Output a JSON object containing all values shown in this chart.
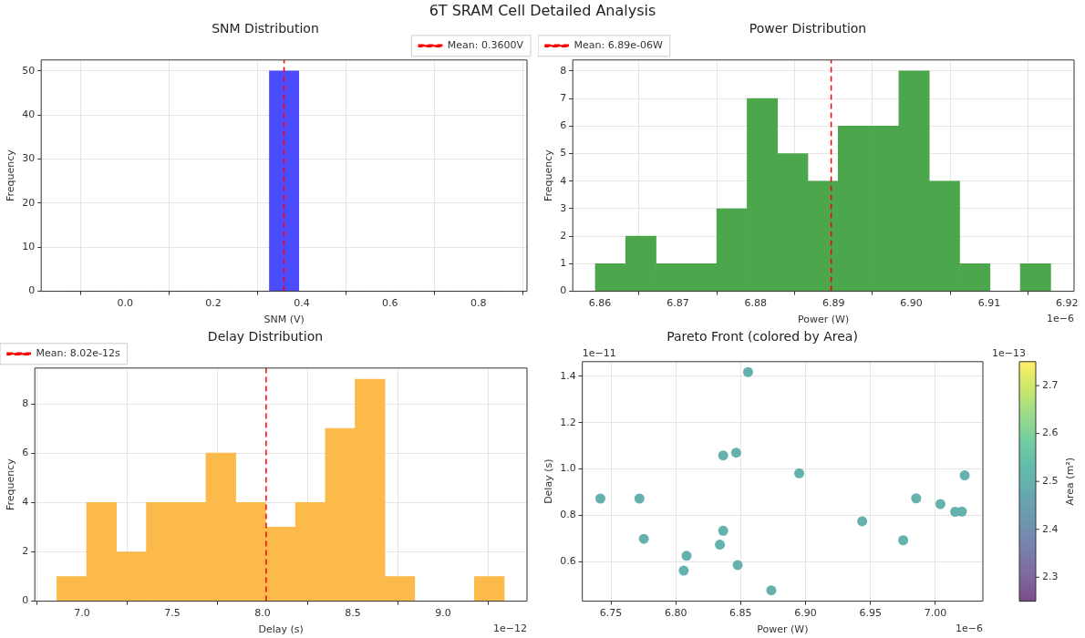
{
  "chart_data": [
    {
      "type": "other",
      "title": "6T SRAM Cell Detailed Analysis"
    },
    {
      "type": "histogram",
      "title": "SNM Distribution",
      "xlabel": "SNM (V)",
      "ylabel": "Frequency",
      "color": "#4c4cff",
      "bins": [
        -0.14,
        -0.0733,
        -0.0067,
        0.06,
        0.1267,
        0.1933,
        0.26,
        0.3267,
        0.3933,
        0.46,
        0.5267,
        0.5933,
        0.66,
        0.7267,
        0.7933,
        0.86
      ],
      "values": [
        0,
        0,
        0,
        0,
        0,
        0,
        0,
        50,
        0,
        0,
        0,
        0,
        0,
        0,
        0
      ],
      "xlim": [
        -0.19,
        0.91
      ],
      "xticks": [
        {
          "value": 0,
          "label": "0.0"
        },
        0.2,
        0.4,
        0.6,
        0.8
      ],
      "ylim": [
        0,
        52.5
      ],
      "yticks": [
        0,
        10,
        20,
        30,
        40,
        50
      ],
      "ref_lines": [
        {
          "axis": "x",
          "value": 0.36,
          "label": "Mean: 0.3600V",
          "color": "#ff0000",
          "line_style": "dashed"
        }
      ],
      "grid": true,
      "legend": "top right"
    },
    {
      "type": "histogram",
      "title": "Power Distribution",
      "xlabel": "Power (W)",
      "ylabel": "Frequency",
      "color": "#4ca64c",
      "bins": [
        6.8594,
        6.8633,
        6.8672,
        6.8711,
        6.875,
        6.8789,
        6.8828,
        6.8867,
        6.8906,
        6.8945,
        6.8984,
        6.9023,
        6.9062,
        6.9101,
        6.914,
        6.9179
      ],
      "values": [
        1,
        2,
        1,
        1,
        3,
        7,
        5,
        4,
        6,
        6,
        8,
        4,
        1,
        0,
        1
      ],
      "xlim": [
        6.8565,
        6.9209
      ],
      "xticks": [
        6.86,
        6.87,
        6.88,
        6.89,
        {
          "value": 6.9,
          "label": "6.90"
        },
        6.91,
        6.92
      ],
      "ylim": [
        0,
        8.4
      ],
      "yticks": [
        0,
        1,
        2,
        3,
        4,
        5,
        6,
        7,
        8
      ],
      "ref_lines": [
        {
          "axis": "x",
          "value": 6.8897,
          "label": "Mean: 6.89e-06W",
          "color": "#ff0000",
          "line_style": "dashed"
        }
      ],
      "annotations": [
        "1e−6"
      ],
      "grid": true,
      "legend": "top left"
    },
    {
      "type": "histogram",
      "title": "Delay Distribution",
      "xlabel": "Delay (s)",
      "ylabel": "Frequency",
      "color": "#fbba4a",
      "bins": [
        6.861,
        7.026,
        7.191,
        7.357,
        7.522,
        7.687,
        7.852,
        8.017,
        8.183,
        8.348,
        8.513,
        8.678,
        8.843,
        9.009,
        9.174,
        9.339
      ],
      "values": [
        1,
        4,
        2,
        4,
        4,
        6,
        4,
        3,
        4,
        7,
        9,
        1,
        0,
        0,
        1
      ],
      "xlim": [
        6.739,
        9.465
      ],
      "xticks": [
        {
          "value": 7,
          "label": "7.0"
        },
        7.5,
        {
          "value": 8,
          "label": "8.0"
        },
        8.5,
        {
          "value": 9,
          "label": "9.0"
        }
      ],
      "ylim": [
        0,
        9.45
      ],
      "yticks": [
        0,
        2,
        4,
        6,
        8
      ],
      "ref_lines": [
        {
          "axis": "x",
          "value": 8.02,
          "label": "Mean: 8.02e-12s",
          "color": "#ff0000",
          "line_style": "dashed"
        }
      ],
      "annotations": [
        "1e−12"
      ],
      "grid": true,
      "legend": "top left"
    },
    {
      "type": "scatter",
      "title": "Pareto Front (colored by Area)",
      "xlabel": "Power (W)",
      "ylabel": "Delay (s)",
      "clabel": "Area (m²)",
      "x": [
        6.7419,
        6.772,
        6.7754,
        6.8061,
        6.8083,
        6.834,
        6.8365,
        6.8365,
        6.8465,
        6.8477,
        6.8557,
        6.8736,
        6.8951,
        6.9436,
        6.9752,
        6.9852,
        7.0039,
        7.0153,
        7.0204,
        7.0226
      ],
      "values": [
        0.872,
        0.872,
        0.698,
        0.561,
        0.625,
        0.673,
        1.058,
        0.733,
        1.07,
        0.585,
        1.418,
        0.476,
        0.981,
        0.774,
        0.692,
        0.873,
        0.848,
        0.815,
        0.816,
        0.972
      ],
      "cvalues": [
        2.5,
        2.5,
        2.5,
        2.5,
        2.5,
        2.5,
        2.5,
        2.5,
        2.5,
        2.5,
        2.5,
        2.5,
        2.5,
        2.5,
        2.5,
        2.5,
        2.5,
        2.5,
        2.5,
        2.5
      ],
      "clim": [
        2.25,
        2.75
      ],
      "cticks": [
        2.3,
        2.4,
        2.5,
        2.6,
        2.7
      ],
      "xlim": [
        6.728,
        7.0366
      ],
      "xticks": [
        6.75,
        {
          "value": 6.8,
          "label": "6.80"
        },
        6.85,
        {
          "value": 6.9,
          "label": "6.90"
        },
        6.95,
        {
          "value": 7,
          "label": "7.00"
        }
      ],
      "ylim": [
        0.429,
        1.463
      ],
      "yticks": [
        0.6,
        0.8,
        {
          "value": 1,
          "label": "1.0"
        },
        1.2,
        1.4
      ],
      "annotations": [
        "1e−6",
        "1e−11",
        "1e−13"
      ],
      "marker": "circle",
      "grid": true
    }
  ]
}
